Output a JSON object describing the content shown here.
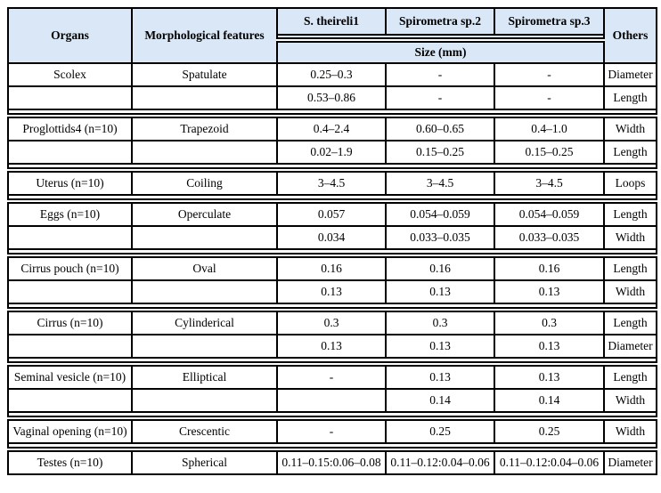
{
  "table": {
    "colors": {
      "header_bg": "#d9e7f6",
      "border": "#000000"
    },
    "header": {
      "organs": "Organs",
      "features": "Morphological features",
      "species": [
        "S. theireli1",
        "Spirometra sp.2",
        "Spirometra sp.3"
      ],
      "size_label": "Size (mm)",
      "others": "Others"
    },
    "sections": [
      {
        "rows": [
          {
            "cells": [
              "Scolex",
              "Spatulate",
              "0.25–0.3",
              "-",
              "-",
              "Diameter"
            ]
          },
          {
            "cells": [
              "",
              "",
              "0.53–0.86",
              "-",
              "-",
              "Length"
            ]
          }
        ]
      },
      {
        "rows": [
          {
            "cells": [
              "Proglottids4 (n=10)",
              "Trapezoid",
              "0.4–2.4",
              "0.60–0.65",
              "0.4–1.0",
              "Width"
            ]
          },
          {
            "cells": [
              "",
              "",
              "0.02–1.9",
              "0.15–0.25",
              "0.15–0.25",
              "Length"
            ]
          }
        ]
      },
      {
        "rows": [
          {
            "cells": [
              "Uterus (n=10)",
              "Coiling",
              "3–4.5",
              "3–4.5",
              "3–4.5",
              "Loops"
            ]
          }
        ]
      },
      {
        "rows": [
          {
            "cells": [
              "Eggs (n=10)",
              "Operculate",
              "0.057",
              "0.054–0.059",
              "0.054–0.059",
              "Length"
            ]
          },
          {
            "cells": [
              "",
              "",
              "0.034",
              "0.033–0.035",
              "0.033–0.035",
              "Width"
            ]
          }
        ]
      },
      {
        "rows": [
          {
            "cells": [
              "Cirrus pouch (n=10)",
              "Oval",
              "0.16",
              "0.16",
              "0.16",
              "Length"
            ]
          },
          {
            "cells": [
              "",
              "",
              "0.13",
              "0.13",
              "0.13",
              "Width"
            ]
          }
        ]
      },
      {
        "rows": [
          {
            "cells": [
              "Cirrus (n=10)",
              "Cylinderical",
              "0.3",
              "0.3",
              "0.3",
              "Length"
            ]
          },
          {
            "cells": [
              "",
              "",
              "0.13",
              "0.13",
              "0.13",
              "Diameter"
            ]
          }
        ]
      },
      {
        "rows": [
          {
            "cells": [
              "Seminal vesicle (n=10)",
              "Elliptical",
              "-",
              "0.13",
              "0.13",
              "Length"
            ]
          },
          {
            "cells": [
              "",
              "",
              "",
              "0.14",
              "0.14",
              "Width"
            ]
          }
        ]
      },
      {
        "rows": [
          {
            "cells": [
              "Vaginal opening (n=10)",
              "Crescentic",
              "-",
              "0.25",
              "0.25",
              "Width"
            ]
          }
        ]
      },
      {
        "rows": [
          {
            "cells": [
              "Testes (n=10)",
              "Spherical",
              "0.11–0.15:0.06–0.08",
              "0.11–0.12:0.04–0.06",
              "0.11–0.12:0.04–0.06",
              "Diameter"
            ]
          }
        ]
      }
    ]
  }
}
